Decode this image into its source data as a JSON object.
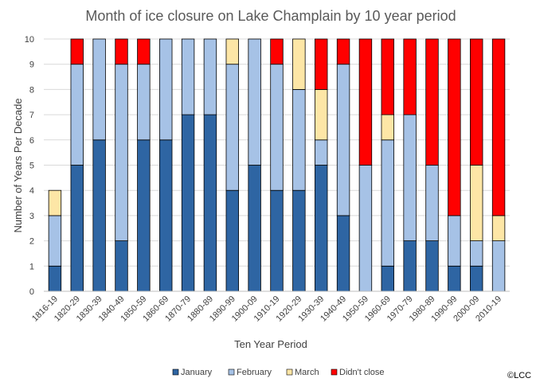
{
  "chart_data": {
    "type": "bar",
    "stacked": true,
    "title": "Month of ice closure on Lake Champlain by 10 year period",
    "xlabel": "Ten Year Period",
    "ylabel": "Number of Years Per Decade",
    "ylim": [
      0,
      10
    ],
    "yticks": [
      "0",
      "1",
      "2",
      "3",
      "4",
      "5",
      "6",
      "7",
      "8",
      "9",
      "10"
    ],
    "grid": true,
    "legend_position": "bottom",
    "categories": [
      "1816-19",
      "1820-29",
      "1830-39",
      "1840-49",
      "1850-59",
      "1860-69",
      "1870-79",
      "1880-89",
      "1890-99",
      "1900-09",
      "1910-19",
      "1920-29",
      "1930-39",
      "1940-49",
      "1950-59",
      "1960-69",
      "1970-79",
      "1980-89",
      "1990-99",
      "2000-09",
      "2010-19"
    ],
    "series": [
      {
        "name": "January",
        "color": "#2e65a3",
        "values": [
          1,
          5,
          6,
          2,
          6,
          6,
          7,
          7,
          4,
          5,
          4,
          4,
          5,
          3,
          0,
          1,
          2,
          2,
          1,
          1,
          0
        ]
      },
      {
        "name": "February",
        "color": "#a6c2e6",
        "values": [
          2,
          4,
          4,
          7,
          3,
          4,
          3,
          3,
          5,
          5,
          5,
          4,
          1,
          6,
          5,
          5,
          5,
          3,
          2,
          1,
          2
        ]
      },
      {
        "name": "March",
        "color": "#fde6a6",
        "values": [
          1,
          0,
          0,
          0,
          0,
          0,
          0,
          0,
          1,
          0,
          0,
          2,
          2,
          0,
          0,
          1,
          0,
          0,
          0,
          3,
          1
        ]
      },
      {
        "name": "Didn't close",
        "color": "#ff0000",
        "values": [
          0,
          1,
          0,
          1,
          1,
          0,
          0,
          0,
          0,
          0,
          1,
          0,
          2,
          1,
          5,
          3,
          3,
          5,
          7,
          5,
          7
        ]
      }
    ]
  },
  "copyright": "©LCC"
}
